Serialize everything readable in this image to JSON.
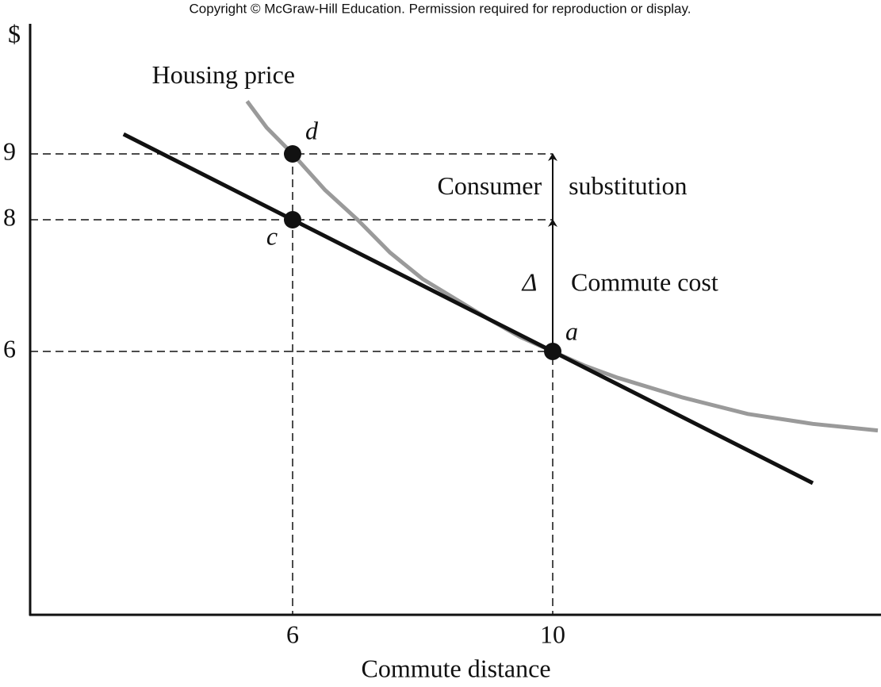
{
  "chart_data": {
    "type": "line",
    "note": "Copyright © McGraw-Hill Education. Permission required for reproduction or display.",
    "y_label": "$",
    "x_label": "Commute distance",
    "xlim": [
      2,
      15
    ],
    "ylim": [
      2,
      11
    ],
    "xticks": [
      6,
      10
    ],
    "yticks": [
      6,
      8,
      9
    ],
    "series": [
      {
        "name": "Housing price",
        "color": "#9a9a9a",
        "x": [
          5.3,
          5.6,
          6,
          6.5,
          7,
          7.5,
          8,
          8.5,
          9,
          9.5,
          10,
          10.5,
          11,
          12,
          13,
          14,
          15
        ],
        "values": [
          9.8,
          9.4,
          9,
          8.45,
          8.0,
          7.5,
          7.1,
          6.8,
          6.5,
          6.22,
          6,
          5.78,
          5.6,
          5.3,
          5.05,
          4.9,
          4.8
        ]
      },
      {
        "color": "#111111",
        "x": [
          3.4,
          6,
          10,
          14
        ],
        "values": [
          9.3,
          8,
          6,
          4
        ]
      }
    ],
    "points": [
      {
        "label": "d",
        "x": 6,
        "y": 9
      },
      {
        "label": "c",
        "x": 6,
        "y": 8
      },
      {
        "label": "a",
        "x": 10,
        "y": 6
      }
    ],
    "annotations": [
      "Consumer substitution",
      "Δ",
      "Commute cost"
    ]
  }
}
